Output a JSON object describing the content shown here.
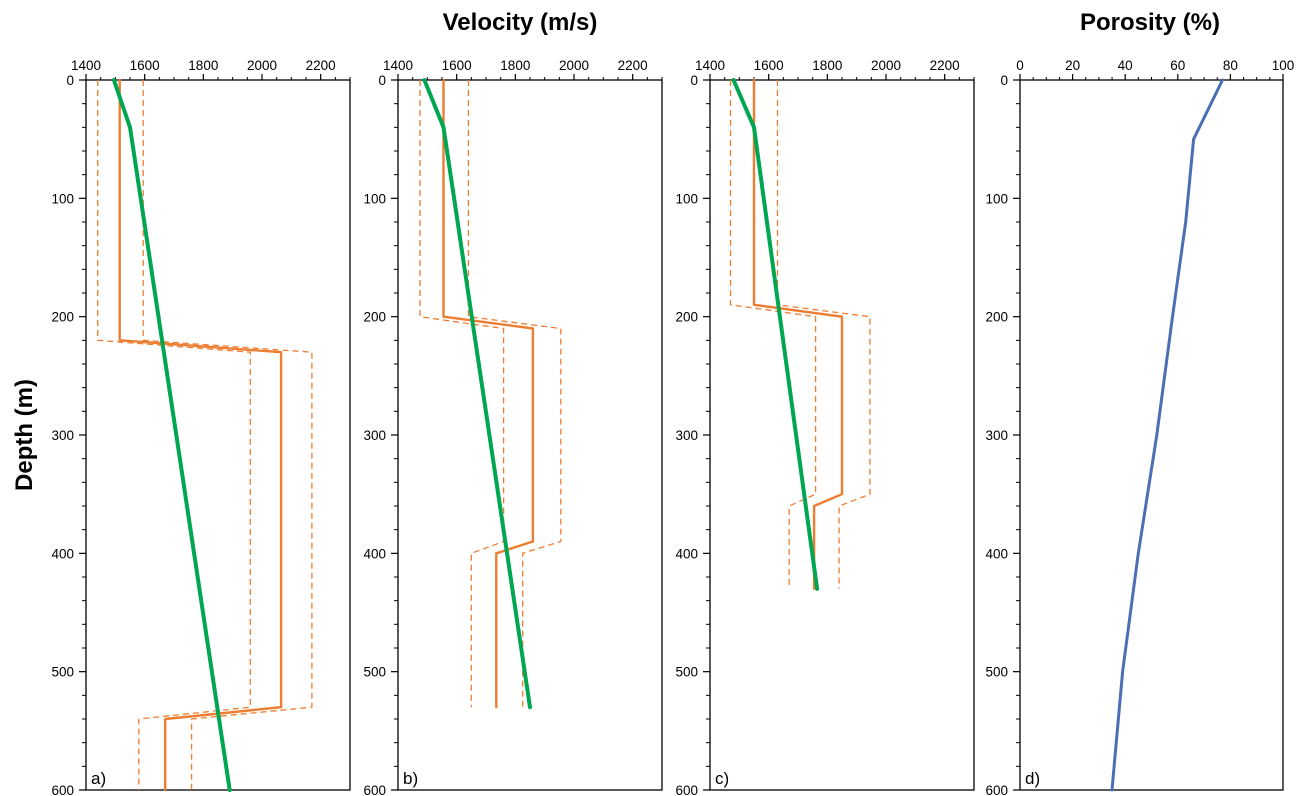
{
  "headings": {
    "velocity": "Velocity (m/s)",
    "porosity": "Porosity (%)",
    "depth": "Depth (m)"
  },
  "colors": {
    "model": "#ed7d31",
    "trend": "#00a651",
    "porosity": "#4a6fb5",
    "axis": "#000000"
  },
  "chart_data": [
    {
      "type": "line",
      "panel_label": "a)",
      "xlim": [
        1400,
        2300
      ],
      "x_ticks": [
        1400,
        1600,
        1800,
        2000,
        2200
      ],
      "ylim": [
        0,
        600
      ],
      "y_ticks": [
        0,
        100,
        200,
        300,
        400,
        500,
        600
      ],
      "y_inverted": true,
      "series": [
        {
          "role": "model",
          "style": "solid",
          "color": "#ed7d31",
          "points": [
            [
              1515,
              0
            ],
            [
              1515,
              220
            ],
            [
              2065,
              230
            ],
            [
              2065,
              530
            ],
            [
              1670,
              540
            ],
            [
              1670,
              600
            ]
          ]
        },
        {
          "role": "bound-low",
          "style": "dashed",
          "color": "#ed7d31",
          "points": [
            [
              1440,
              0
            ],
            [
              1440,
              220
            ],
            [
              1960,
              230
            ],
            [
              1960,
              530
            ],
            [
              1580,
              540
            ],
            [
              1580,
              600
            ]
          ]
        },
        {
          "role": "bound-high",
          "style": "dashed",
          "color": "#ed7d31",
          "points": [
            [
              1595,
              0
            ],
            [
              1595,
              220
            ],
            [
              2170,
              230
            ],
            [
              2170,
              530
            ],
            [
              1760,
              540
            ],
            [
              1760,
              600
            ]
          ]
        },
        {
          "role": "trend",
          "style": "solid",
          "color": "#00a651",
          "points": [
            [
              1495,
              0
            ],
            [
              1550,
              40
            ],
            [
              1890,
              600
            ]
          ]
        }
      ]
    },
    {
      "type": "line",
      "panel_label": "b)",
      "xlim": [
        1400,
        2300
      ],
      "x_ticks": [
        1400,
        1600,
        1800,
        2000,
        2200
      ],
      "ylim": [
        0,
        600
      ],
      "y_ticks": [
        0,
        100,
        200,
        300,
        400,
        500,
        600
      ],
      "y_inverted": true,
      "series": [
        {
          "role": "model",
          "style": "solid",
          "color": "#ed7d31",
          "points": [
            [
              1555,
              0
            ],
            [
              1555,
              200
            ],
            [
              1860,
              210
            ],
            [
              1860,
              390
            ],
            [
              1735,
              400
            ],
            [
              1735,
              530
            ]
          ]
        },
        {
          "role": "bound-low",
          "style": "dashed",
          "color": "#ed7d31",
          "points": [
            [
              1475,
              0
            ],
            [
              1475,
              200
            ],
            [
              1760,
              210
            ],
            [
              1760,
              390
            ],
            [
              1650,
              400
            ],
            [
              1650,
              530
            ]
          ]
        },
        {
          "role": "bound-high",
          "style": "dashed",
          "color": "#ed7d31",
          "points": [
            [
              1640,
              0
            ],
            [
              1640,
              200
            ],
            [
              1955,
              210
            ],
            [
              1955,
              390
            ],
            [
              1825,
              400
            ],
            [
              1825,
              530
            ]
          ]
        },
        {
          "role": "trend",
          "style": "solid",
          "color": "#00a651",
          "points": [
            [
              1490,
              0
            ],
            [
              1555,
              40
            ],
            [
              1850,
              530
            ]
          ]
        }
      ]
    },
    {
      "type": "line",
      "panel_label": "c)",
      "xlim": [
        1400,
        2300
      ],
      "x_ticks": [
        1400,
        1600,
        1800,
        2000,
        2200
      ],
      "ylim": [
        0,
        600
      ],
      "y_ticks": [
        0,
        100,
        200,
        300,
        400,
        500,
        600
      ],
      "y_inverted": true,
      "series": [
        {
          "role": "model",
          "style": "solid",
          "color": "#ed7d31",
          "points": [
            [
              1550,
              0
            ],
            [
              1550,
              190
            ],
            [
              1850,
              200
            ],
            [
              1850,
              350
            ],
            [
              1755,
              360
            ],
            [
              1755,
              430
            ]
          ]
        },
        {
          "role": "bound-low",
          "style": "dashed",
          "color": "#ed7d31",
          "points": [
            [
              1470,
              0
            ],
            [
              1470,
              190
            ],
            [
              1760,
              200
            ],
            [
              1760,
              350
            ],
            [
              1670,
              360
            ],
            [
              1670,
              430
            ]
          ]
        },
        {
          "role": "bound-high",
          "style": "dashed",
          "color": "#ed7d31",
          "points": [
            [
              1630,
              0
            ],
            [
              1630,
              190
            ],
            [
              1945,
              200
            ],
            [
              1945,
              350
            ],
            [
              1840,
              360
            ],
            [
              1840,
              430
            ]
          ]
        },
        {
          "role": "trend",
          "style": "solid",
          "color": "#00a651",
          "points": [
            [
              1480,
              0
            ],
            [
              1550,
              40
            ],
            [
              1765,
              430
            ]
          ]
        }
      ]
    },
    {
      "type": "line",
      "panel_label": "d)",
      "xlim": [
        0,
        100
      ],
      "x_ticks": [
        0,
        20,
        40,
        60,
        80,
        100
      ],
      "ylim": [
        0,
        600
      ],
      "y_ticks": [
        0,
        100,
        200,
        300,
        400,
        500,
        600
      ],
      "y_inverted": true,
      "series": [
        {
          "role": "porosity",
          "style": "solid",
          "color": "#4a6fb5",
          "points": [
            [
              77,
              0
            ],
            [
              66,
              50
            ],
            [
              63,
              120
            ],
            [
              58,
              200
            ],
            [
              52,
              300
            ],
            [
              45,
              400
            ],
            [
              39,
              500
            ],
            [
              35,
              600
            ]
          ]
        }
      ]
    }
  ]
}
